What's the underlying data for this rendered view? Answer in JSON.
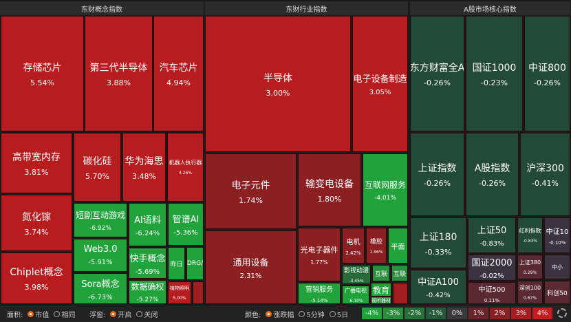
{
  "panels": [
    {
      "title": "东财概念指数",
      "tiles": [
        {
          "label": "存储芯片",
          "change": "5.54%"
        },
        {
          "label": "第三代半导体",
          "change": "3.88%"
        },
        {
          "label": "汽车芯片",
          "change": "4.94%"
        },
        {
          "label": "高带宽内存",
          "change": "3.81%"
        },
        {
          "label": "碳化硅",
          "change": "5.70%"
        },
        {
          "label": "华为海思",
          "change": "3.48%"
        },
        {
          "label": "机器人执行器",
          "change": "4.26%"
        },
        {
          "label": "氮化镓",
          "change": "3.74%"
        },
        {
          "label": "Chiplet概念",
          "change": "3.98%"
        },
        {
          "label": "短剧互动游戏",
          "change": "-6.92%"
        },
        {
          "label": "AI语料",
          "change": "-6.24%"
        },
        {
          "label": "智谱AI",
          "change": "-5.36%"
        },
        {
          "label": "Web3.0",
          "change": "-5.91%"
        },
        {
          "label": "快手概念",
          "change": "-5.69%"
        },
        {
          "label": "昨日"
        },
        {
          "label": "DRG/"
        },
        {
          "label": "Sora概念",
          "change": "-6.73%"
        },
        {
          "label": "数据确权",
          "change": "-5.27%"
        },
        {
          "label": "植物照明",
          "change": "5.00%"
        }
      ]
    },
    {
      "title": "东财行业指数",
      "tiles": [
        {
          "label": "半导体",
          "change": "3.00%"
        },
        {
          "label": "电子设备制造",
          "change": "3.05%"
        },
        {
          "label": "电子元件",
          "change": "1.74%"
        },
        {
          "label": "输变电设备",
          "change": "1.80%"
        },
        {
          "label": "互联网服务",
          "change": "-4.01%"
        },
        {
          "label": "通用设备",
          "change": "2.31%"
        },
        {
          "label": "光电子器件",
          "change": "1.77%"
        },
        {
          "label": "电机",
          "change": "2.42%"
        },
        {
          "label": "橡胶",
          "change": "1.96%"
        },
        {
          "label": "平面"
        },
        {
          "label": "影视动漫",
          "change": "-3.45%"
        },
        {
          "label": "互联"
        },
        {
          "label": "互联"
        },
        {
          "label": "营销服务",
          "change": "-5.14%"
        },
        {
          "label": "广播电视",
          "change": "-6.10%"
        },
        {
          "label": "教育"
        },
        {
          "label": "视听器材"
        }
      ]
    },
    {
      "title": "A股市场核心指数",
      "tiles": [
        {
          "label": "东方财富全A",
          "change": "-0.26%"
        },
        {
          "label": "国证1000",
          "change": "-0.23%"
        },
        {
          "label": "中证800",
          "change": "-0.26%"
        },
        {
          "label": "上证指数",
          "change": "-0.26%"
        },
        {
          "label": "A股指数",
          "change": "-0.26%"
        },
        {
          "label": "沪深300",
          "change": "-0.41%"
        },
        {
          "label": "上证180",
          "change": "-0.33%"
        },
        {
          "label": "上证50",
          "change": "-0.83%"
        },
        {
          "label": "红利指数",
          "change": "-0.83%"
        },
        {
          "label": "中证10",
          "change": "-0.10%"
        },
        {
          "label": "中证A100",
          "change": "-0.42%"
        },
        {
          "label": "国证2000",
          "change": "-0.02%"
        },
        {
          "label": "上证380",
          "change": "0.29%"
        },
        {
          "label": "中小"
        },
        {
          "label": "中证500",
          "change": "0.11%"
        },
        {
          "label": "深创100",
          "change": "0.67%"
        },
        {
          "label": "科创50"
        }
      ]
    }
  ],
  "toolbar": {
    "area_label": "面积:",
    "area_options": [
      "市值",
      "相同"
    ],
    "float_label": "浮窗:",
    "float_options": [
      "开启",
      "关闭"
    ],
    "color_label": "颜色:",
    "color_options": [
      "涨跌幅",
      "5分钟",
      "5日"
    ]
  },
  "legend": [
    "-4%",
    "-3%",
    "-2%",
    "-1%",
    "0%",
    "1%",
    "2%",
    "3%",
    "4%"
  ]
}
